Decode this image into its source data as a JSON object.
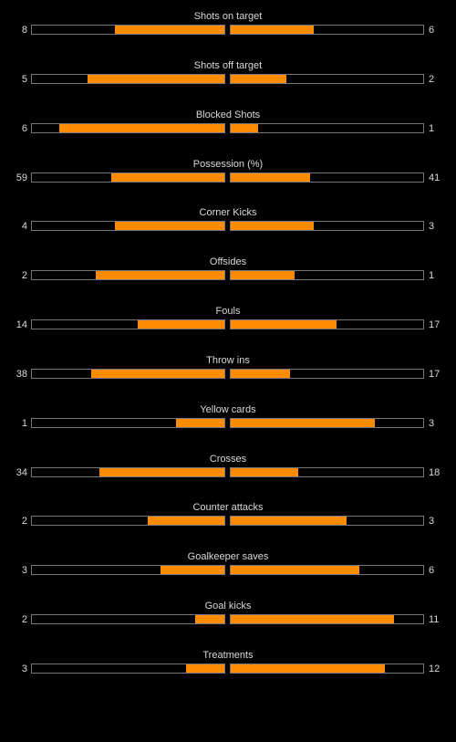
{
  "colors": {
    "background": "#000000",
    "text": "#d9d9d9",
    "bar_fill": "#ff8c00",
    "bar_border": "#777777"
  },
  "stats": [
    {
      "label": "Shots on target",
      "home": 8,
      "away": 6,
      "home_fill": 0.57,
      "away_fill": 0.43
    },
    {
      "label": "Shots off target",
      "home": 5,
      "away": 2,
      "home_fill": 0.71,
      "away_fill": 0.29
    },
    {
      "label": "Blocked Shots",
      "home": 6,
      "away": 1,
      "home_fill": 0.86,
      "away_fill": 0.14
    },
    {
      "label": "Possession (%)",
      "home": 59,
      "away": 41,
      "home_fill": 0.59,
      "away_fill": 0.41
    },
    {
      "label": "Corner Kicks",
      "home": 4,
      "away": 3,
      "home_fill": 0.57,
      "away_fill": 0.43
    },
    {
      "label": "Offsides",
      "home": 2,
      "away": 1,
      "home_fill": 0.67,
      "away_fill": 0.33
    },
    {
      "label": "Fouls",
      "home": 14,
      "away": 17,
      "home_fill": 0.45,
      "away_fill": 0.55
    },
    {
      "label": "Throw ins",
      "home": 38,
      "away": 17,
      "home_fill": 0.69,
      "away_fill": 0.31
    },
    {
      "label": "Yellow cards",
      "home": 1,
      "away": 3,
      "home_fill": 0.25,
      "away_fill": 0.75
    },
    {
      "label": "Crosses",
      "home": 34,
      "away": 18,
      "home_fill": 0.65,
      "away_fill": 0.35
    },
    {
      "label": "Counter attacks",
      "home": 2,
      "away": 3,
      "home_fill": 0.4,
      "away_fill": 0.6
    },
    {
      "label": "Goalkeeper saves",
      "home": 3,
      "away": 6,
      "home_fill": 0.33,
      "away_fill": 0.67
    },
    {
      "label": "Goal kicks",
      "home": 2,
      "away": 11,
      "home_fill": 0.15,
      "away_fill": 0.85
    },
    {
      "label": "Treatments",
      "home": 3,
      "away": 12,
      "home_fill": 0.2,
      "away_fill": 0.8
    }
  ]
}
